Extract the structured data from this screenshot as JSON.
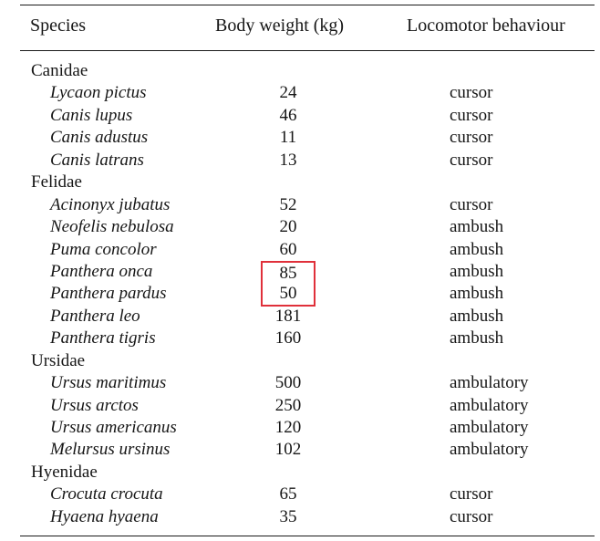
{
  "header": {
    "species": "Species",
    "body_weight": "Body weight (kg)",
    "locomotor": "Locomotor behaviour"
  },
  "highlight_color": "#e0303a",
  "groups": [
    {
      "family": "Canidae",
      "species": [
        {
          "name": "Lycaon pictus",
          "weight": "24",
          "behaviour": "cursor"
        },
        {
          "name": "Canis lupus",
          "weight": "46",
          "behaviour": "cursor"
        },
        {
          "name": "Canis adustus",
          "weight": "11",
          "behaviour": "cursor"
        },
        {
          "name": "Canis latrans",
          "weight": "13",
          "behaviour": "cursor"
        }
      ]
    },
    {
      "family": "Felidae",
      "species": [
        {
          "name": "Acinonyx jubatus",
          "weight": "52",
          "behaviour": "cursor"
        },
        {
          "name": "Neofelis nebulosa",
          "weight": "20",
          "behaviour": "ambush"
        },
        {
          "name": "Puma concolor",
          "weight": "60",
          "behaviour": "ambush"
        },
        {
          "name": "Panthera onca",
          "weight": "85",
          "behaviour": "ambush",
          "highlighted": true
        },
        {
          "name": "Panthera pardus",
          "weight": "50",
          "behaviour": "ambush",
          "highlighted": true
        },
        {
          "name": "Panthera leo",
          "weight": "181",
          "behaviour": "ambush"
        },
        {
          "name": "Panthera tigris",
          "weight": "160",
          "behaviour": "ambush"
        }
      ]
    },
    {
      "family": "Ursidae",
      "species": [
        {
          "name": "Ursus maritimus",
          "weight": "500",
          "behaviour": "ambulatory"
        },
        {
          "name": "Ursus arctos",
          "weight": "250",
          "behaviour": "ambulatory"
        },
        {
          "name": "Ursus americanus",
          "weight": "120",
          "behaviour": "ambulatory"
        },
        {
          "name": "Melursus ursinus",
          "weight": "102",
          "behaviour": "ambulatory"
        }
      ]
    },
    {
      "family": "Hyenidae",
      "species": [
        {
          "name": "Crocuta crocuta",
          "weight": "65",
          "behaviour": "cursor"
        },
        {
          "name": "Hyaena hyaena",
          "weight": "35",
          "behaviour": "cursor"
        }
      ]
    }
  ]
}
